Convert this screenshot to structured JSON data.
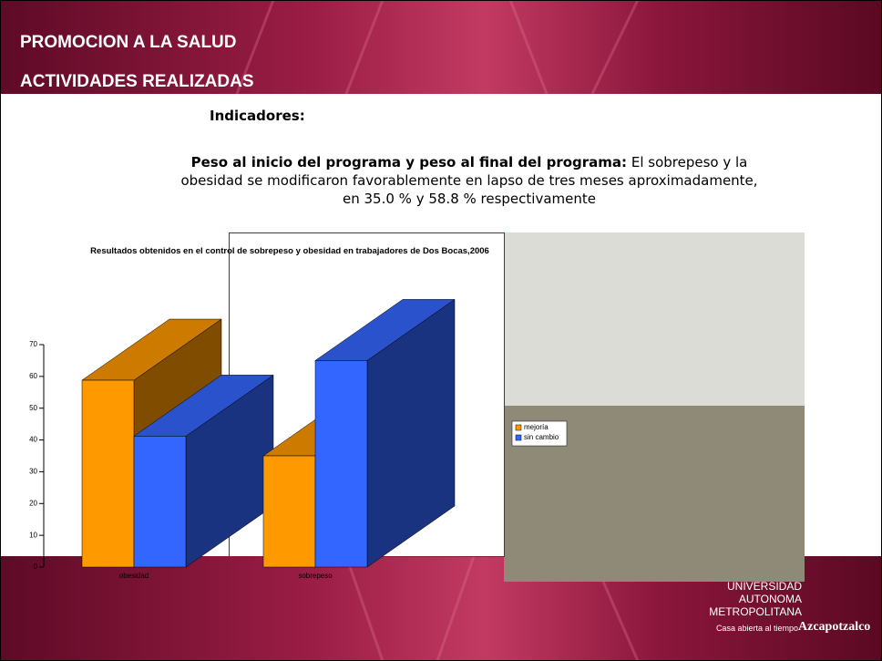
{
  "header": {
    "title": "PROMOCION A LA SALUD",
    "subtitle": "ACTIVIDADES REALIZADAS"
  },
  "body": {
    "heading": "Indicadores:",
    "lead": "Peso al inicio del programa y peso al final del programa:",
    "text": "El sobrepeso y la obesidad se modificaron favorablemente en lapso de tres meses aproximadamente, en 35.0 % y 58.8 % respectivamente"
  },
  "logo": {
    "name": "UNIVERSIDAD AUTONOMA METROPOLITANA",
    "motto": "Casa abierta al tiempo",
    "campus": "Azcapotzalco"
  },
  "chart_data": {
    "type": "bar3d",
    "title": "Resultados obtenidos en el control de sobrepeso y obesidad en trabajadores de Dos Bocas,2006",
    "categories": [
      "obesidad",
      "sobrepeso"
    ],
    "series": [
      {
        "name": "mejoría",
        "color": "#ff9900",
        "values": [
          58.8,
          35.0
        ]
      },
      {
        "name": "sin cambio",
        "color": "#3366ff",
        "values": [
          41.2,
          65.0
        ]
      }
    ],
    "ylim": [
      0,
      70
    ],
    "yticks": [
      0,
      10,
      20,
      30,
      40,
      50,
      60,
      70
    ]
  }
}
